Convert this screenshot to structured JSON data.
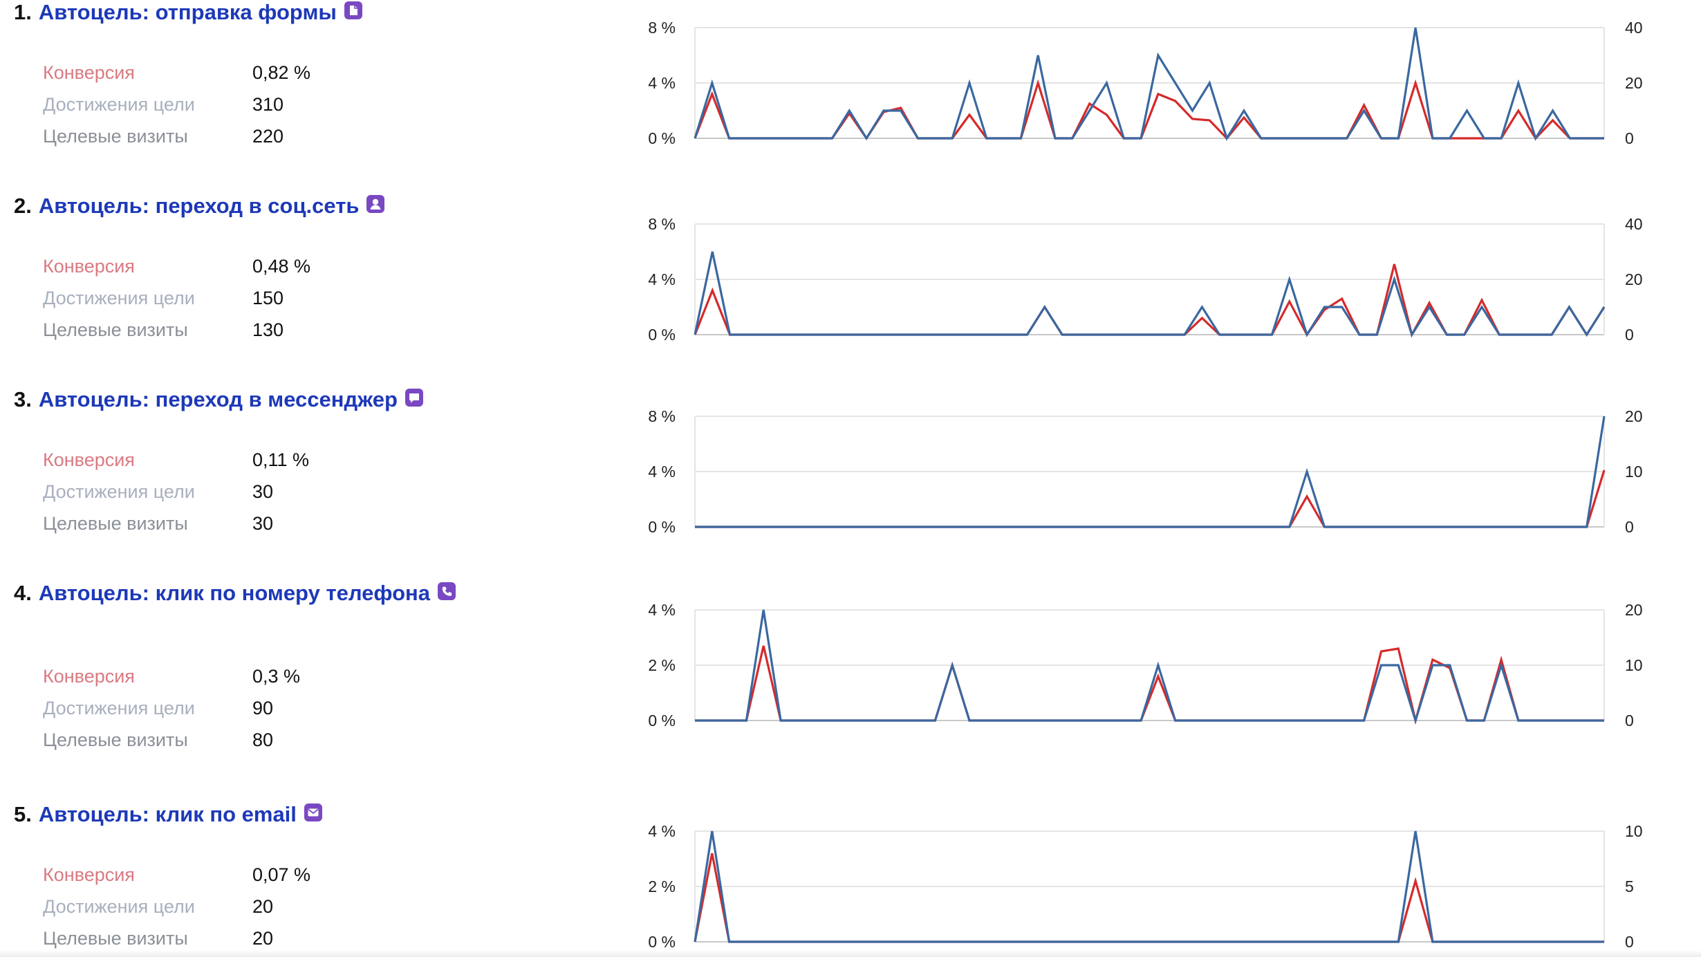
{
  "colors": {
    "title": "#1d39b8",
    "conversion_line": "#d62a2a",
    "visits_line": "#3a68a0",
    "icon": "#7a48c2",
    "conversion_label": "#d97a82",
    "achievements_label": "#a8b0be",
    "visits_label": "#8b8f97"
  },
  "goals": [
    {
      "number": "1.",
      "title": "Автоцель: отправка формы",
      "icon": "form-document-icon",
      "metrics": {
        "conversion_label": "Конверсия",
        "conversion": "0,82 %",
        "achievements_label": "Достижения цели",
        "achievements": "310",
        "visits_label": "Целевые визиты",
        "visits": "220"
      }
    },
    {
      "number": "2.",
      "title": "Автоцель: переход в соц.сеть",
      "icon": "social-person-icon",
      "metrics": {
        "conversion_label": "Конверсия",
        "conversion": "0,48 %",
        "achievements_label": "Достижения цели",
        "achievements": "150",
        "visits_label": "Целевые визиты",
        "visits": "130"
      }
    },
    {
      "number": "3.",
      "title": "Автоцель: переход в мессенджер",
      "icon": "messenger-bubble-icon",
      "metrics": {
        "conversion_label": "Конверсия",
        "conversion": "0,11 %",
        "achievements_label": "Достижения цели",
        "achievements": "30",
        "visits_label": "Целевые визиты",
        "visits": "30"
      }
    },
    {
      "number": "4.",
      "title": "Автоцель: клик по номеру телефона",
      "icon": "phone-icon",
      "metrics": {
        "conversion_label": "Конверсия",
        "conversion": "0,3 %",
        "achievements_label": "Достижения цели",
        "achievements": "90",
        "visits_label": "Целевые визиты",
        "visits": "80"
      }
    },
    {
      "number": "5.",
      "title": "Автоцель: клик по email",
      "icon": "email-envelope-icon",
      "metrics": {
        "conversion_label": "Конверсия",
        "conversion": "0,07 %",
        "achievements_label": "Достижения цели",
        "achievements": "20",
        "visits_label": "Целевые визиты",
        "visits": "20"
      }
    }
  ],
  "chart_data": [
    {
      "type": "line",
      "left_ticks": [
        "0 %",
        "4 %",
        "8 %"
      ],
      "right_ticks": [
        "0",
        "20",
        "40"
      ],
      "y_left_range": [
        0,
        8
      ],
      "y_right_range": [
        0,
        40
      ],
      "grid": true,
      "series": [
        {
          "axis": "left",
          "color": "#d62a2a",
          "values": [
            0,
            3.2,
            0,
            0,
            0,
            0,
            0,
            0,
            0,
            1.8,
            0,
            1.9,
            2.2,
            0,
            0,
            0,
            1.7,
            0,
            0,
            0,
            4,
            0,
            0,
            2.5,
            1.7,
            0,
            0,
            3.2,
            2.7,
            1.4,
            1.3,
            0,
            1.5,
            0,
            0,
            0,
            0,
            0,
            0,
            2.4,
            0,
            0,
            4,
            0,
            0,
            0,
            0,
            0,
            2,
            0,
            1.3,
            0,
            0,
            0
          ]
        },
        {
          "axis": "right",
          "color": "#3a68a0",
          "values": [
            0,
            20,
            0,
            0,
            0,
            0,
            0,
            0,
            0,
            10,
            0,
            10,
            10,
            0,
            0,
            0,
            20,
            0,
            0,
            0,
            30,
            0,
            0,
            10,
            20,
            0,
            0,
            30,
            20,
            10,
            20,
            0,
            10,
            0,
            0,
            0,
            0,
            0,
            0,
            10,
            0,
            0,
            40,
            0,
            0,
            10,
            0,
            0,
            20,
            0,
            10,
            0,
            0,
            0
          ]
        }
      ]
    },
    {
      "type": "line",
      "left_ticks": [
        "0 %",
        "4 %",
        "8 %"
      ],
      "right_ticks": [
        "0",
        "20",
        "40"
      ],
      "y_left_range": [
        0,
        8
      ],
      "y_right_range": [
        0,
        40
      ],
      "grid": true,
      "series": [
        {
          "axis": "left",
          "color": "#d62a2a",
          "values": [
            0,
            3.2,
            0,
            0,
            0,
            0,
            0,
            0,
            0,
            0,
            0,
            0,
            0,
            0,
            0,
            0,
            0,
            0,
            0,
            0,
            2,
            0,
            0,
            0,
            0,
            0,
            0,
            0,
            0,
            1.2,
            0,
            0,
            0,
            0,
            2.4,
            0,
            1.8,
            2.6,
            0,
            0,
            5.1,
            0,
            2.3,
            0,
            0,
            2.5,
            0,
            0,
            0,
            0,
            2,
            0,
            2
          ]
        },
        {
          "axis": "right",
          "color": "#3a68a0",
          "values": [
            0,
            30,
            0,
            0,
            0,
            0,
            0,
            0,
            0,
            0,
            0,
            0,
            0,
            0,
            0,
            0,
            0,
            0,
            0,
            0,
            10,
            0,
            0,
            0,
            0,
            0,
            0,
            0,
            0,
            10,
            0,
            0,
            0,
            0,
            20,
            0,
            10,
            10,
            0,
            0,
            20,
            0,
            10,
            0,
            0,
            10,
            0,
            0,
            0,
            0,
            10,
            0,
            10
          ]
        }
      ]
    },
    {
      "type": "line",
      "left_ticks": [
        "0 %",
        "4 %",
        "8 %"
      ],
      "right_ticks": [
        "0",
        "10",
        "20"
      ],
      "y_left_range": [
        0,
        8
      ],
      "y_right_range": [
        0,
        20
      ],
      "grid": true,
      "series": [
        {
          "axis": "left",
          "color": "#d62a2a",
          "values": [
            0,
            0,
            0,
            0,
            0,
            0,
            0,
            0,
            0,
            0,
            0,
            0,
            0,
            0,
            0,
            0,
            0,
            0,
            0,
            0,
            0,
            0,
            0,
            0,
            0,
            0,
            0,
            0,
            0,
            0,
            0,
            0,
            0,
            0,
            0,
            2.2,
            0,
            0,
            0,
            0,
            0,
            0,
            0,
            0,
            0,
            0,
            0,
            0,
            0,
            0,
            0,
            0,
            4.1
          ]
        },
        {
          "axis": "right",
          "color": "#3a68a0",
          "values": [
            0,
            0,
            0,
            0,
            0,
            0,
            0,
            0,
            0,
            0,
            0,
            0,
            0,
            0,
            0,
            0,
            0,
            0,
            0,
            0,
            0,
            0,
            0,
            0,
            0,
            0,
            0,
            0,
            0,
            0,
            0,
            0,
            0,
            0,
            0,
            10,
            0,
            0,
            0,
            0,
            0,
            0,
            0,
            0,
            0,
            0,
            0,
            0,
            0,
            0,
            0,
            0,
            20
          ]
        }
      ]
    },
    {
      "type": "line",
      "left_ticks": [
        "0 %",
        "2 %",
        "4 %"
      ],
      "right_ticks": [
        "0",
        "10",
        "20"
      ],
      "y_left_range": [
        0,
        4
      ],
      "y_right_range": [
        0,
        20
      ],
      "grid": true,
      "series": [
        {
          "axis": "left",
          "color": "#d62a2a",
          "values": [
            0,
            0,
            0,
            0,
            2.7,
            0,
            0,
            0,
            0,
            0,
            0,
            0,
            0,
            0,
            0,
            2,
            0,
            0,
            0,
            0,
            0,
            0,
            0,
            0,
            0,
            0,
            0,
            1.6,
            0,
            0,
            0,
            0,
            0,
            0,
            0,
            0,
            0,
            0,
            0,
            0,
            2.5,
            2.6,
            0,
            2.2,
            1.9,
            0,
            0,
            2.2,
            0,
            0,
            0,
            0,
            0,
            0
          ]
        },
        {
          "axis": "right",
          "color": "#3a68a0",
          "values": [
            0,
            0,
            0,
            0,
            20,
            0,
            0,
            0,
            0,
            0,
            0,
            0,
            0,
            0,
            0,
            10,
            0,
            0,
            0,
            0,
            0,
            0,
            0,
            0,
            0,
            0,
            0,
            10,
            0,
            0,
            0,
            0,
            0,
            0,
            0,
            0,
            0,
            0,
            0,
            0,
            10,
            10,
            0,
            10,
            10,
            0,
            0,
            10,
            0,
            0,
            0,
            0,
            0,
            0
          ]
        }
      ]
    },
    {
      "type": "line",
      "left_ticks": [
        "0 %",
        "2 %",
        "4 %"
      ],
      "right_ticks": [
        "0",
        "5",
        "10"
      ],
      "y_left_range": [
        0,
        4
      ],
      "y_right_range": [
        0,
        10
      ],
      "grid": true,
      "series": [
        {
          "axis": "left",
          "color": "#d62a2a",
          "values": [
            0,
            3.2,
            0,
            0,
            0,
            0,
            0,
            0,
            0,
            0,
            0,
            0,
            0,
            0,
            0,
            0,
            0,
            0,
            0,
            0,
            0,
            0,
            0,
            0,
            0,
            0,
            0,
            0,
            0,
            0,
            0,
            0,
            0,
            0,
            0,
            0,
            0,
            0,
            0,
            0,
            0,
            0,
            2.2,
            0,
            0,
            0,
            0,
            0,
            0,
            0,
            0,
            0,
            0,
            0
          ]
        },
        {
          "axis": "right",
          "color": "#3a68a0",
          "values": [
            0,
            10,
            0,
            0,
            0,
            0,
            0,
            0,
            0,
            0,
            0,
            0,
            0,
            0,
            0,
            0,
            0,
            0,
            0,
            0,
            0,
            0,
            0,
            0,
            0,
            0,
            0,
            0,
            0,
            0,
            0,
            0,
            0,
            0,
            0,
            0,
            0,
            0,
            0,
            0,
            0,
            0,
            10,
            0,
            0,
            0,
            0,
            0,
            0,
            0,
            0,
            0,
            0,
            0
          ]
        }
      ]
    }
  ]
}
